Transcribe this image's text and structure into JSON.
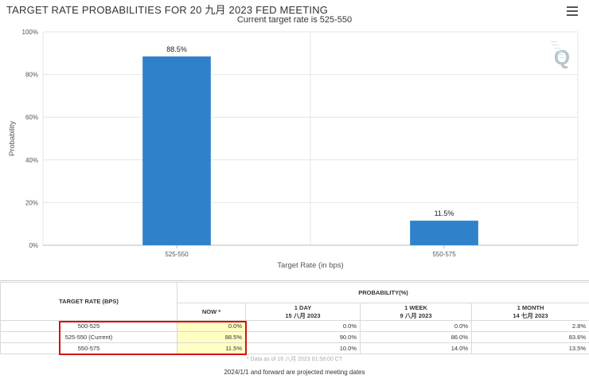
{
  "chart_data": {
    "type": "bar",
    "title": "TARGET RATE PROBABILITIES FOR 20 九月 2023 FED MEETING",
    "subtitle": "Current target rate is 525-550",
    "categories": [
      "525-550",
      "550-575"
    ],
    "values": [
      88.5,
      11.5
    ],
    "data_labels": [
      "88.5%",
      "11.5%"
    ],
    "xlabel": "Target Rate (in bps)",
    "ylabel": "Probability",
    "ylim": [
      0,
      100
    ],
    "yticks": [
      "0%",
      "20%",
      "40%",
      "60%",
      "80%",
      "100%"
    ],
    "grid": true,
    "bar_color": "#2f82c9"
  },
  "logo_letter": "Q",
  "table": {
    "header_rate": "TARGET RATE (BPS)",
    "header_prob": "PROBABILITY(%)",
    "columns": [
      {
        "line1": "NOW *",
        "line2": ""
      },
      {
        "line1": "1 DAY",
        "line2": "15 八月 2023"
      },
      {
        "line1": "1 WEEK",
        "line2": "9 八月 2023"
      },
      {
        "line1": "1 MONTH",
        "line2": "14 七月 2023"
      }
    ],
    "rows": [
      {
        "rate": "500-525",
        "values": [
          "0.0%",
          "0.0%",
          "0.0%",
          "2.8%"
        ]
      },
      {
        "rate": "525-550 (Current)",
        "values": [
          "88.5%",
          "90.0%",
          "86.0%",
          "83.6%"
        ]
      },
      {
        "rate": "550-575",
        "values": [
          "11.5%",
          "10.0%",
          "14.0%",
          "13.5%"
        ]
      }
    ],
    "note": "* Data as of 16 八月 2023 01:58:00 CT",
    "footer": "2024/1/1 and forward are projected meeting dates"
  },
  "highlight_color": "#d31212"
}
